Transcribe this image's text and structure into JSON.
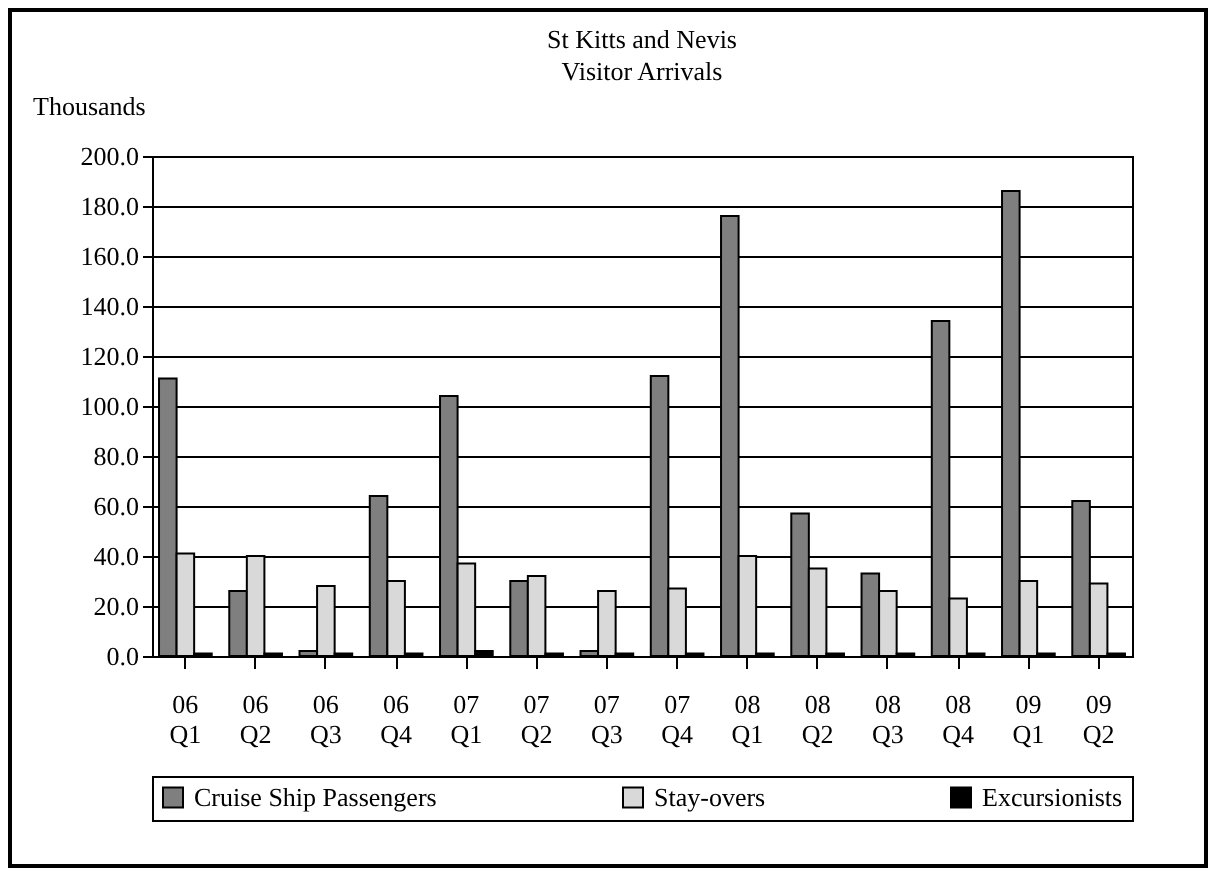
{
  "chart_data": {
    "type": "bar",
    "title": "St Kitts and Nevis",
    "subtitle": "Visitor Arrivals",
    "ylabel": "Thousands",
    "categories": [
      "06 Q1",
      "06 Q2",
      "06 Q3",
      "06 Q4",
      "07 Q1",
      "07 Q2",
      "07 Q3",
      "07 Q4",
      "08 Q1",
      "08 Q2",
      "08 Q3",
      "08 Q4",
      "09 Q1",
      "09 Q2"
    ],
    "series": [
      {
        "name": "Cruise Ship Passengers",
        "color": "#7f7f7f",
        "values": [
          111,
          26,
          2,
          64,
          104,
          30,
          2,
          112,
          176,
          57,
          33,
          134,
          186,
          62
        ]
      },
      {
        "name": "Stay-overs",
        "color": "#d9d9d9",
        "values": [
          41,
          40,
          28,
          30,
          37,
          32,
          26,
          27,
          40,
          35,
          26,
          23,
          30,
          29
        ]
      },
      {
        "name": "Excursionists",
        "color": "#000000",
        "values": [
          1,
          1,
          1,
          1,
          2,
          1,
          1,
          1,
          1,
          1,
          1,
          1,
          1,
          1
        ]
      }
    ],
    "ylim": [
      0,
      200
    ],
    "yticks": [
      {
        "value": 0,
        "label": "0.0"
      },
      {
        "value": 20,
        "label": "20.0"
      },
      {
        "value": 40,
        "label": "40.0"
      },
      {
        "value": 60,
        "label": "60.0"
      },
      {
        "value": 80,
        "label": "80.0"
      },
      {
        "value": 100,
        "label": "100.0"
      },
      {
        "value": 120,
        "label": "120.0"
      },
      {
        "value": 140,
        "label": "140.0"
      },
      {
        "value": 160,
        "label": "160.0"
      },
      {
        "value": 180,
        "label": "180.0"
      },
      {
        "value": 200,
        "label": "200.0"
      }
    ],
    "grid": "y",
    "legend": "bottom"
  }
}
